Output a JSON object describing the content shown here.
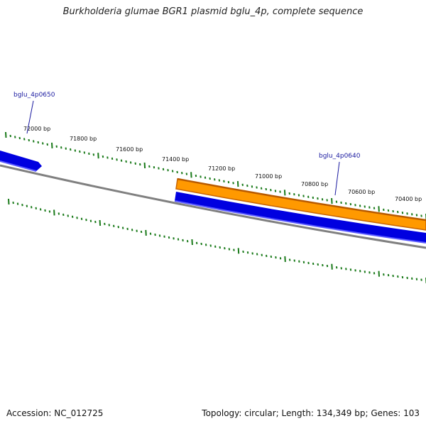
{
  "title": "Burkholderia glumae BGR1 plasmid bglu_4p, complete sequence",
  "footer": {
    "accession": "Accession: NC_012725",
    "summary": "Topology: circular; Length: 134,349 bp; Genes: 103"
  },
  "scale": {
    "labels": [
      "72000 bp",
      "71800 bp",
      "71600 bp",
      "71400 bp",
      "71200 bp",
      "71000 bp",
      "70800 bp",
      "70600 bp",
      "70400 bp"
    ],
    "tick_color": "#1a7a1a"
  },
  "genes": [
    {
      "name": "bglu_4p0650",
      "strand": "reverse",
      "color": "#0000e0",
      "label_color": "#1a1aa0"
    },
    {
      "name": "bglu_4p0640",
      "strand": "forward",
      "color": "#ff9900",
      "label_color": "#1a1aa0"
    }
  ],
  "colors": {
    "backbone": "#808080",
    "forward_gene": "#ff9900",
    "forward_gene_border": "#c86400",
    "reverse_gene": "#0000e0",
    "reverse_gene_highlight": "#5a5aff"
  }
}
